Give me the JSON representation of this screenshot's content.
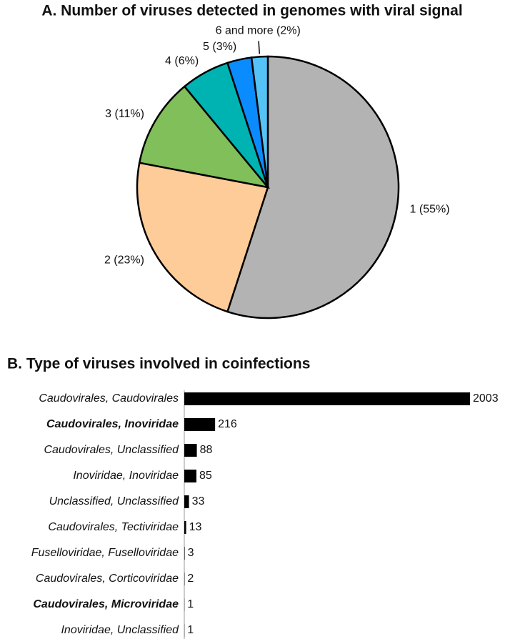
{
  "chart_data": [
    {
      "type": "pie",
      "title": "A. Number of viruses detected in genomes with viral signal",
      "categories": [
        "1 (55%)",
        "2 (23%)",
        "3 (11%)",
        "4 (6%)",
        "5 (3%)",
        "6 and more (2%)"
      ],
      "values": [
        55,
        23,
        11,
        6,
        3,
        2
      ],
      "colors": [
        "#b3b3b3",
        "#fdcc98",
        "#80bf5a",
        "#00b3b3",
        "#0a8cff",
        "#55c3f5"
      ]
    },
    {
      "type": "hbar",
      "title": "B. Type of viruses involved in coinfections",
      "categories": [
        "Caudovirales, Caudovirales",
        "Caudovirales, Inoviridae",
        "Caudovirales, Unclassified",
        "Inoviridae, Inoviridae",
        "Unclassified, Unclassified",
        "Caudovirales, Tectiviridae",
        "Fuselloviridae, Fuselloviridae",
        "Caudovirales, Corticoviridae",
        "Caudovirales, Microviridae",
        "Inoviridae, Unclassified"
      ],
      "values": [
        2003,
        216,
        88,
        85,
        33,
        13,
        3,
        2,
        1,
        1
      ],
      "xlim": [
        0,
        2003
      ],
      "color": "#000000"
    }
  ]
}
